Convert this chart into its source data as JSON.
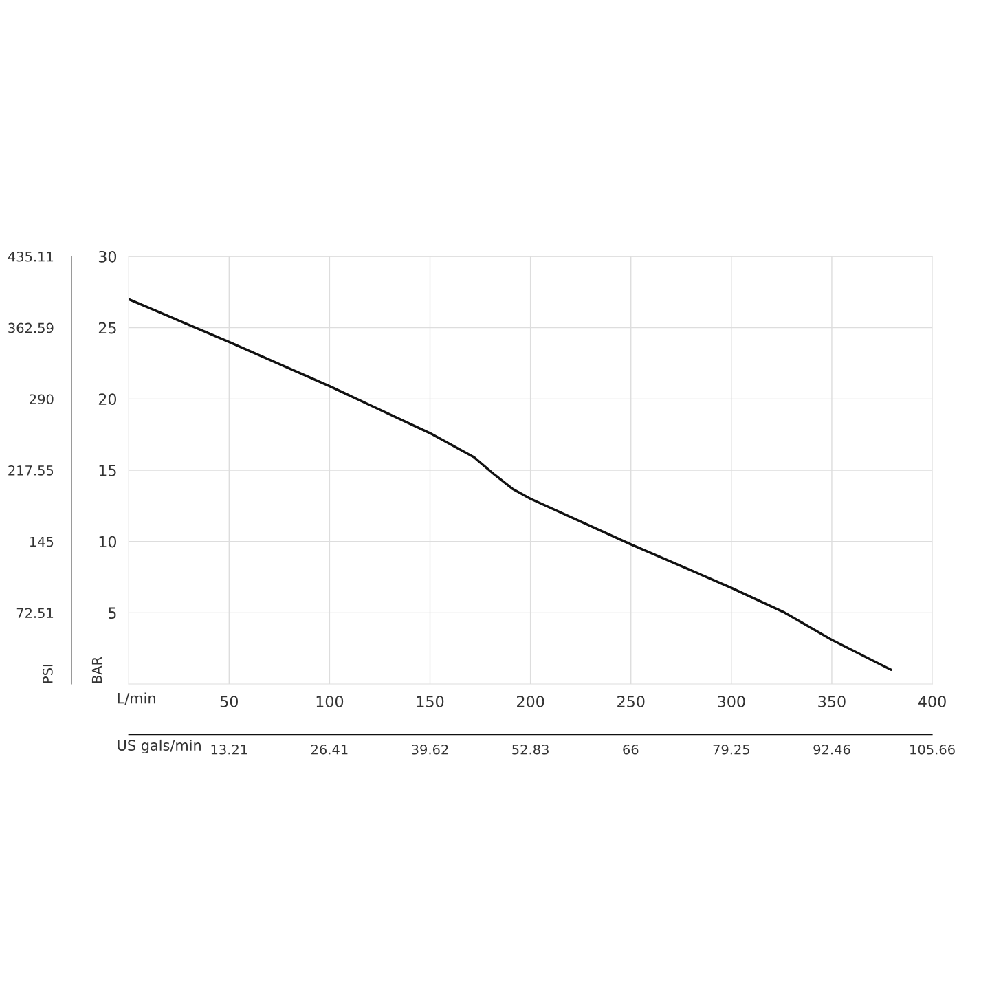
{
  "chart_data": {
    "type": "line",
    "x": [
      0,
      50,
      100,
      150,
      172,
      182,
      191,
      200,
      250,
      300,
      326,
      350,
      379.5
    ],
    "series": [
      {
        "color": "#111111",
        "values": [
          27.0,
          24.0,
          20.9,
          17.6,
          15.9,
          14.7,
          13.7,
          13.0,
          9.8,
          6.75,
          5.05,
          3.1,
          1.0
        ]
      }
    ],
    "xlim": [
      0,
      400
    ],
    "xticks": [
      50,
      100,
      150,
      200,
      250,
      300,
      350,
      400
    ],
    "ylim": [
      0,
      30
    ],
    "yticks": [
      5,
      10,
      15,
      20,
      25,
      30
    ],
    "y2lim": [
      0,
      435.11
    ],
    "y2ticks": [
      72.51,
      145,
      217.55,
      290,
      362.59,
      435.11
    ],
    "x2lim": [
      0,
      105.66
    ],
    "x2ticks": [
      13.21,
      26.41,
      39.62,
      52.83,
      66,
      79.25,
      92.46,
      105.66
    ],
    "xlabel": "L/min",
    "ylabel": "BAR",
    "y2label": "PSI",
    "x2label": "US gals/min",
    "grid": true,
    "marker": "none",
    "line_style": "solid"
  }
}
